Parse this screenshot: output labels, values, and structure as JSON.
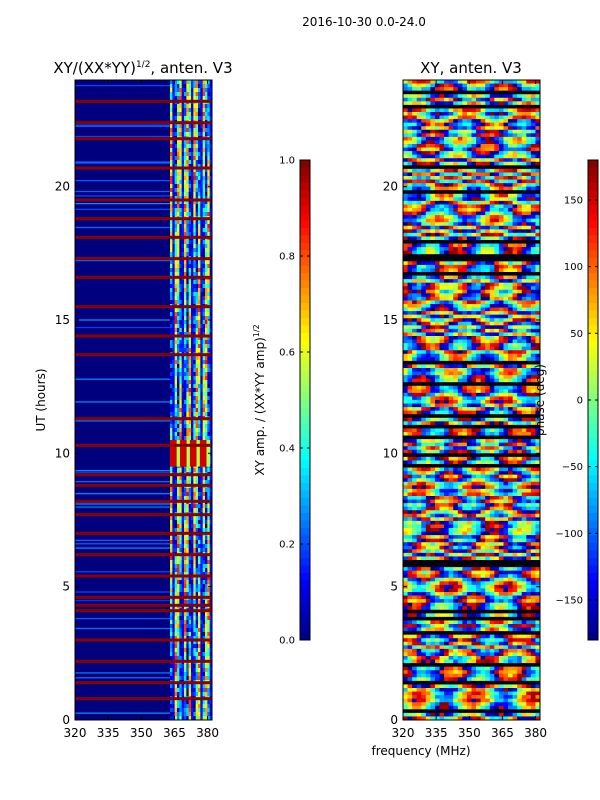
{
  "figure": {
    "suptitle": "2016-10-30 0.0-24.0",
    "xlabel": "frequency (MHz)"
  },
  "colors": {
    "jet": [
      "#00007f",
      "#0000ff",
      "#007fff",
      "#00ffff",
      "#7fff7f",
      "#ffff00",
      "#ff7f00",
      "#ff0000",
      "#7f0000"
    ],
    "flag": "#8b0000"
  },
  "chart_data": [
    {
      "type": "heatmap",
      "title_main": "XY/(XX*YY)",
      "title_sup": "1/2",
      "title_rest": ", anten. V3",
      "ylabel": "UT (hours)",
      "xlim": [
        320,
        382
      ],
      "ylim": [
        0,
        24
      ],
      "xticks": [
        320,
        335,
        350,
        365,
        380
      ],
      "yticks": [
        0,
        5,
        10,
        15,
        20
      ],
      "colorbar": {
        "label": "XY amp. / (XX*YY amp)",
        "label_sup": "1/2",
        "range": [
          0.0,
          1.0
        ],
        "ticks": [
          "0.0",
          "0.2",
          "0.4",
          "0.6",
          "0.8",
          "1.0"
        ],
        "tick_values": [
          0.0,
          0.2,
          0.4,
          0.6,
          0.8,
          1.0
        ]
      },
      "features": {
        "active_band_mhz": [
          363,
          382
        ],
        "bright_block": {
          "freq_mhz": [
            363,
            381
          ],
          "ut_hours": [
            9.5,
            10.5
          ]
        },
        "flagged_rows_ut_hours": [
          0.8,
          1.4,
          2.2,
          3.0,
          4.1,
          4.3,
          4.6,
          5.4,
          6.2,
          7.0,
          7.7,
          8.2,
          8.8,
          9.2,
          10.3,
          11.3,
          13.7,
          14.4,
          15.5,
          16.6,
          17.3,
          18.1,
          18.8,
          19.5,
          20.7,
          21.8,
          22.4,
          23.2
        ]
      }
    },
    {
      "type": "heatmap",
      "title_main": "XY, anten. V3",
      "xlim": [
        320,
        382
      ],
      "ylim": [
        0,
        24
      ],
      "xticks": [
        320,
        335,
        350,
        365,
        380
      ],
      "yticks": [
        0,
        5,
        10,
        15,
        20
      ],
      "colorbar": {
        "label": "phase (deg)",
        "range": [
          -180,
          180
        ],
        "ticks": [
          "−150",
          "−100",
          "−50",
          "0",
          "50",
          "100",
          "150"
        ],
        "tick_values": [
          -150,
          -100,
          -50,
          0,
          50,
          100,
          150
        ]
      }
    }
  ]
}
